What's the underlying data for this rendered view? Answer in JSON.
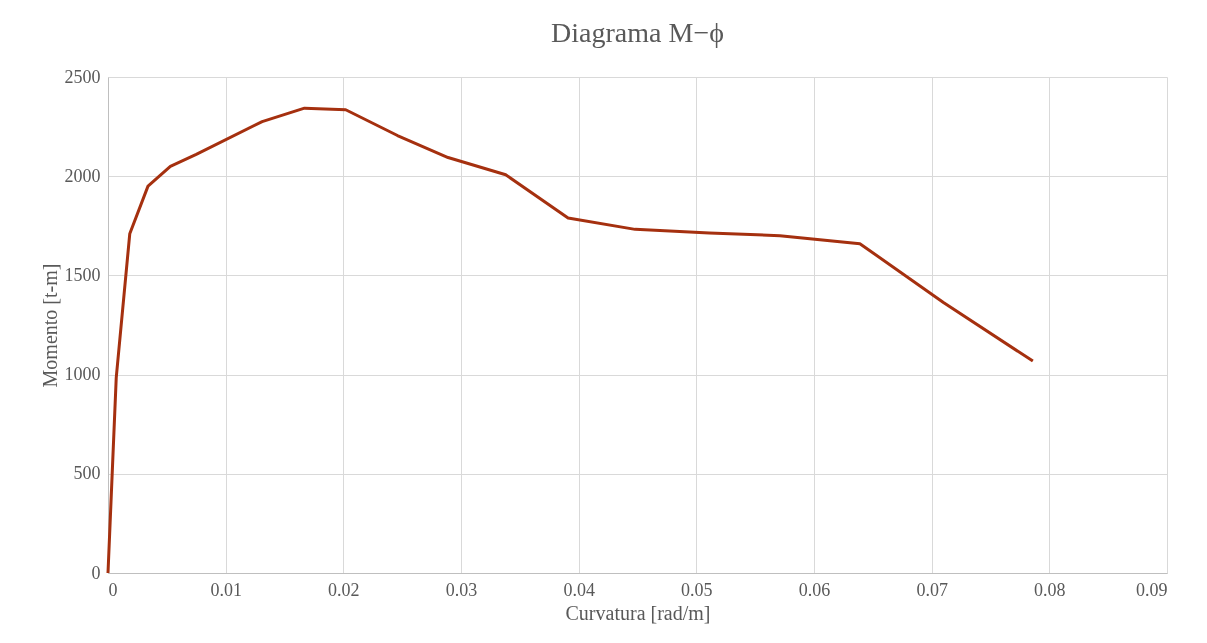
{
  "chart_data": {
    "type": "line",
    "title": "Diagrama M−ϕ",
    "xlabel": "Curvatura [rad/m]",
    "ylabel": "Momento [t-m]",
    "x": [
      0,
      0.0007,
      0.00185,
      0.0034,
      0.0053,
      0.0075,
      0.0131,
      0.0167,
      0.0202,
      0.0246,
      0.0289,
      0.0338,
      0.0391,
      0.0448,
      0.0511,
      0.0571,
      0.0639,
      0.071,
      0.0786
    ],
    "series": [
      {
        "color": "#a5300f",
        "values": [
          0,
          985,
          1710,
          1950,
          2050,
          2110,
          2275,
          2343,
          2335,
          2205,
          2094,
          2007,
          1789,
          1732,
          1714,
          1700,
          1660,
          1363,
          1068
        ]
      }
    ],
    "xlim": [
      0,
      0.09
    ],
    "xticks": [
      0,
      0.01,
      0.02,
      0.03,
      0.04,
      0.05,
      0.06,
      0.07,
      0.08,
      0.09
    ],
    "ylim": [
      0,
      2500
    ],
    "yticks": [
      0,
      500,
      1000,
      1500,
      2000,
      2500
    ],
    "grid": true,
    "marker": "none",
    "line_style": "solid"
  }
}
